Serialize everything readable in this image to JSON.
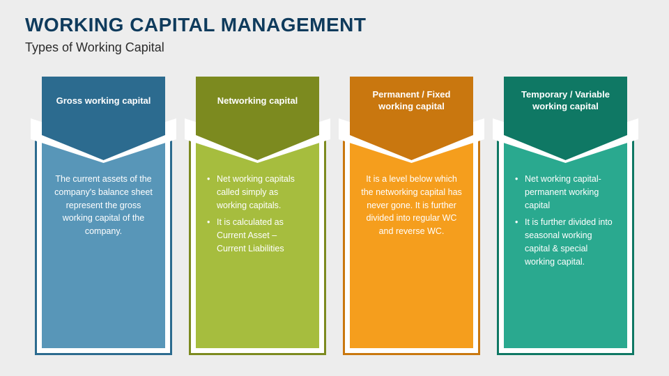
{
  "title": "WORKING CAPITAL MANAGEMENT",
  "subtitle": "Types of Working Capital",
  "background_color": "#ededed",
  "title_color": "#0f3b5c",
  "columns": [
    {
      "header": "Gross working capital",
      "header_color": "#2c6b8f",
      "body_color": "#5896b8",
      "outline_color": "#2c6b8f",
      "content_type": "text",
      "text": "The current assets of the company's balance sheet represent the gross working capital of the company."
    },
    {
      "header": "Networking capital",
      "header_color": "#7c8a1f",
      "body_color": "#a6bd3e",
      "outline_color": "#7c8a1f",
      "content_type": "list",
      "items": [
        "Net working capitals called simply as working capitals.",
        "It is calculated as Current Asset – Current Liabilities"
      ]
    },
    {
      "header": "Permanent  /  Fixed working capital",
      "header_color": "#c9770f",
      "body_color": "#f59e1d",
      "outline_color": "#c9770f",
      "content_type": "text",
      "text": "It is a level below which the networking capital has never gone. It is further divided into regular WC and reverse WC."
    },
    {
      "header": "Temporary / Variable working capital",
      "header_color": "#0f7864",
      "body_color": "#2aa98f",
      "outline_color": "#0f7864",
      "content_type": "list",
      "items": [
        "Net working capital-permanent working capital",
        "It is further divided into seasonal working capital & special working capital."
      ]
    }
  ]
}
